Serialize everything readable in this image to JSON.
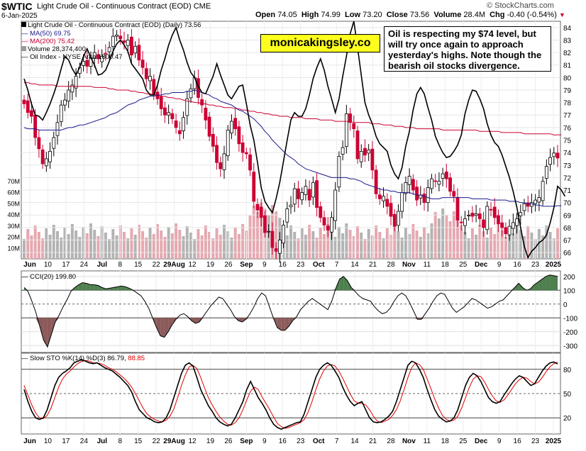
{
  "header": {
    "symbol": "$WTIC",
    "description": "Light Crude Oil - Continuous Contract (EOD)",
    "exchange": "CME",
    "date": "6-Jan-2025",
    "open_label": "Open",
    "open": "74.05",
    "high_label": "High",
    "high": "74.99",
    "low_label": "Low",
    "low": "73.20",
    "close_label": "Close",
    "close": "73.56",
    "volume_label": "Volume",
    "volume": "28.4M",
    "chg_label": "Chg",
    "chg": "-0.40 (-0.54%)",
    "logo_text": "© StockCharts.com"
  },
  "watermark": "monicakingsley.co",
  "note": "Oil is respecting my $74 level, but will try once again to approach yesterday's highs. Note though the bearish oil stocks divergence.",
  "legend": {
    "price": "Light Crude Oil - Continuous Contract (EOD) (Daily) 73.56",
    "ma50": "MA(50) 69.75",
    "ma200": "MA(200) 75.42",
    "volume": "Volume 28,374,400",
    "oil_index": "Oil Index - NYSE Arca 1800.47",
    "cci": "CCI(20) 199.80",
    "sto": "Slow STO %K(14) %D(3) 86.79,",
    "sto_d": "88.85"
  },
  "colors": {
    "up": "#000000",
    "down": "#cc0033",
    "ma50": "#1a1a8c",
    "ma200": "#cc0033",
    "oil_index": "#000000",
    "volume_up": "#b3b3b3",
    "volume_down": "#e6a8b0",
    "cci_pos_fill": "#4e7f4e",
    "cci_neg_fill": "#8c5a5a",
    "sto_k": "#000000",
    "sto_d": "#e00000"
  },
  "chart_data": [
    {
      "type": "candlestick",
      "panel": "price",
      "x_labels": [
        "Jun",
        "10",
        "17",
        "24",
        "Jul",
        "8",
        "15",
        "22",
        "29Aug",
        "12",
        "19",
        "26",
        "Sep",
        "9",
        "16",
        "23",
        "Oct",
        "7",
        "14",
        "21",
        "28",
        "Nov",
        "11",
        "18",
        "25",
        "Dec",
        "9",
        "16",
        "23",
        "2025"
      ],
      "y_ticks": [
        66,
        67,
        68,
        69,
        70,
        71,
        72,
        73,
        74,
        75,
        76,
        77,
        78,
        79,
        80,
        81,
        82,
        83,
        84
      ],
      "ylim": [
        65.5,
        84.5
      ],
      "volume_ticks": [
        "10M",
        "20M",
        "30M",
        "40M",
        "50M",
        "60M",
        "70M"
      ],
      "close_series": [
        77.9,
        77.2,
        76.9,
        75.2,
        74.3,
        73.1,
        73.5,
        74.1,
        75.2,
        76.4,
        77.8,
        78.2,
        79.0,
        79.4,
        80.1,
        80.8,
        81.3,
        80.9,
        81.6,
        82.0,
        81.5,
        81.7,
        81.9,
        82.4,
        83.3,
        83.4,
        83.1,
        82.8,
        83.0,
        81.8,
        82.5,
        81.4,
        80.8,
        79.9,
        80.1,
        78.6,
        78.3,
        77.5,
        77.0,
        77.2,
        76.7,
        76.0,
        75.5,
        76.8,
        78.3,
        79.1,
        80.0,
        78.4,
        77.8,
        76.6,
        75.3,
        74.5,
        73.2,
        72.7,
        73.9,
        75.8,
        76.5,
        75.9,
        74.7,
        74.0,
        73.9,
        72.6,
        70.1,
        69.4,
        68.8,
        67.6,
        67.7,
        66.4,
        66.1,
        67.0,
        68.2,
        69.5,
        69.8,
        71.1,
        70.3,
        70.8,
        71.3,
        70.2,
        71.6,
        69.6,
        68.8,
        68.2,
        67.8,
        68.8,
        71.0,
        73.7,
        74.4,
        77.1,
        76.4,
        75.9,
        73.5,
        74.1,
        73.8,
        74.2,
        72.6,
        70.7,
        70.3,
        70.5,
        69.7,
        68.9,
        68.1,
        69.3,
        70.8,
        71.6,
        72.1,
        71.0,
        70.2,
        70.6,
        70.0,
        71.2,
        71.9,
        71.7,
        71.7,
        72.3,
        71.9,
        70.9,
        70.5,
        68.6,
        68.4,
        68.7,
        69.0,
        68.9,
        69.1,
        68.7,
        68.0,
        69.7,
        69.4,
        68.8,
        68.3,
        68.0,
        67.5,
        68.1,
        68.4,
        68.7,
        69.2,
        69.9,
        69.7,
        70.0,
        70.2,
        70.4,
        71.7,
        72.9,
        73.6,
        73.96,
        73.56
      ],
      "ma50": [
        76.0,
        75.9,
        75.9,
        75.9,
        75.8,
        75.8,
        75.8,
        75.8,
        75.8,
        75.8,
        75.8,
        75.9,
        76.0,
        76.0,
        76.1,
        76.2,
        76.2,
        76.3,
        76.4,
        76.5,
        76.6,
        76.7,
        76.8,
        77.0,
        77.1,
        77.2,
        77.4,
        77.6,
        77.8,
        77.9,
        78.0,
        78.2,
        78.3,
        78.4,
        78.5,
        78.5,
        78.6,
        78.6,
        78.7,
        78.7,
        78.8,
        78.8,
        78.8,
        78.8,
        78.9,
        78.9,
        79.0,
        78.9,
        78.8,
        78.7,
        78.6,
        78.4,
        78.3,
        78.1,
        78.0,
        77.9,
        77.8,
        77.6,
        77.4,
        77.3,
        77.1,
        76.9,
        76.7,
        76.4,
        76.1,
        75.7,
        75.4,
        75.0,
        74.7,
        74.4,
        74.1,
        73.8,
        73.6,
        73.4,
        73.1,
        72.9,
        72.7,
        72.6,
        72.5,
        72.4,
        72.3,
        72.2,
        72.1,
        72.0,
        72.0,
        72.0,
        72.0,
        72.0,
        71.9,
        71.9,
        71.8,
        71.7,
        71.5,
        71.4,
        71.3,
        71.2,
        71.1,
        71.0,
        71.0,
        70.9,
        70.9,
        70.8,
        70.8,
        70.8,
        70.8,
        70.7,
        70.6,
        70.6,
        70.5,
        70.4,
        70.3,
        70.3,
        70.3,
        70.4,
        70.4,
        70.4,
        70.4,
        70.4,
        70.4,
        70.4,
        70.4,
        70.3,
        70.3,
        70.3,
        70.3,
        70.3,
        70.2,
        70.2,
        70.2,
        70.2,
        70.2,
        70.1,
        70.1,
        70.1,
        70.0,
        70.0,
        69.9,
        69.9,
        69.8,
        69.8,
        69.7,
        69.7,
        69.7,
        69.7,
        69.75,
        69.75
      ],
      "ma200": [
        79.6,
        79.6,
        79.5,
        79.5,
        79.4,
        79.4,
        79.4,
        79.4,
        79.4,
        79.3,
        79.3,
        79.3,
        79.3,
        79.3,
        79.3,
        79.3,
        79.3,
        79.3,
        79.3,
        79.2,
        79.2,
        79.2,
        79.2,
        79.1,
        79.1,
        79.0,
        79.0,
        79.0,
        79.0,
        78.9,
        78.9,
        78.8,
        78.8,
        78.7,
        78.7,
        78.6,
        78.6,
        78.5,
        78.5,
        78.4,
        78.4,
        78.3,
        78.3,
        78.2,
        78.1,
        78.1,
        78.0,
        78.0,
        77.9,
        77.9,
        77.8,
        77.8,
        77.7,
        77.7,
        77.6,
        77.6,
        77.6,
        77.5,
        77.5,
        77.4,
        77.4,
        77.3,
        77.3,
        77.2,
        77.2,
        77.1,
        77.1,
        77.0,
        77.0,
        76.9,
        76.9,
        76.9,
        76.8,
        76.8,
        76.8,
        76.8,
        76.7,
        76.7,
        76.7,
        76.7,
        76.6,
        76.6,
        76.6,
        76.6,
        76.5,
        76.5,
        76.5,
        76.5,
        76.5,
        76.4,
        76.4,
        76.4,
        76.4,
        76.4,
        76.3,
        76.3,
        76.3,
        76.2,
        76.2,
        76.2,
        76.1,
        76.1,
        76.1,
        76.0,
        76.0,
        76.0,
        75.9,
        75.9,
        75.9,
        75.9,
        75.9,
        75.9,
        75.9,
        75.8,
        75.8,
        75.8,
        75.8,
        75.8,
        75.8,
        75.8,
        75.8,
        75.8,
        75.8,
        75.7,
        75.7,
        75.7,
        75.7,
        75.7,
        75.7,
        75.6,
        75.6,
        75.6,
        75.6,
        75.6,
        75.6,
        75.5,
        75.5,
        75.5,
        75.5,
        75.5,
        75.5,
        75.5,
        75.5,
        75.4,
        75.42,
        75.42
      ],
      "oil_index_on_price_scale": [
        79.9,
        79.0,
        77.9,
        77.0,
        76.9,
        76.6,
        77.2,
        77.9,
        78.7,
        79.6,
        80.7,
        81.7,
        81.4,
        80.7,
        80.2,
        80.8,
        81.7,
        82.3,
        81.6,
        81.0,
        80.2,
        80.3,
        80.6,
        81.3,
        82.1,
        82.7,
        83.0,
        82.6,
        82.1,
        81.1,
        80.7,
        80.3,
        79.9,
        79.0,
        78.6,
        78.6,
        79.4,
        80.6,
        81.5,
        82.6,
        83.4,
        84.0,
        83.0,
        82.2,
        81.2,
        80.4,
        80.0,
        79.3,
        78.8,
        78.7,
        79.4,
        80.1,
        81.1,
        80.2,
        79.4,
        78.6,
        78.3,
        78.8,
        79.3,
        79.4,
        77.9,
        76.2,
        75.0,
        73.2,
        71.2,
        70.1,
        69.6,
        69.2,
        70.3,
        71.6,
        73.3,
        75.0,
        76.6,
        77.2,
        76.9,
        76.9,
        77.5,
        78.6,
        79.9,
        80.8,
        81.5,
        80.6,
        79.3,
        78.3,
        77.2,
        78.3,
        80.1,
        81.7,
        83.5,
        84.5,
        82.4,
        80.2,
        78.0,
        77.0,
        76.3,
        75.3,
        74.7,
        74.4,
        74.1,
        73.0,
        72.3,
        71.9,
        72.8,
        74.5,
        75.7,
        77.4,
        78.7,
        79.2,
        78.7,
        77.6,
        76.6,
        75.3,
        74.6,
        74.0,
        73.6,
        73.7,
        74.1,
        74.6,
        75.4,
        77.1,
        78.2,
        79.0,
        78.9,
        78.3,
        77.5,
        76.3,
        75.4,
        74.8,
        74.5,
        73.8,
        72.9,
        72.0,
        70.9,
        69.6,
        68.0,
        66.5,
        65.6,
        66.1,
        66.4,
        66.8,
        67.0,
        67.4,
        68.4,
        69.6,
        71.3,
        71.0,
        70.5
      ]
    },
    {
      "type": "line",
      "panel": "cci",
      "name": "CCI(20)",
      "y_ticks": [
        -300,
        -200,
        -100,
        0,
        100,
        200
      ],
      "ylim": [
        -350,
        240
      ],
      "bands": [
        100,
        -100
      ],
      "values": [
        120,
        90,
        20,
        -60,
        -160,
        -260,
        -310,
        -220,
        -130,
        -80,
        -20,
        30,
        90,
        120,
        140,
        155,
        150,
        140,
        140,
        135,
        120,
        110,
        115,
        120,
        125,
        130,
        125,
        115,
        100,
        80,
        60,
        20,
        -30,
        -100,
        -170,
        -230,
        -240,
        -200,
        -150,
        -110,
        -80,
        -70,
        -90,
        -120,
        -140,
        -130,
        -90,
        -50,
        -10,
        20,
        50,
        40,
        0,
        -40,
        -90,
        -120,
        -130,
        -110,
        -70,
        -20,
        40,
        80,
        60,
        -20,
        -100,
        -170,
        -190,
        -190,
        -160,
        -120,
        -90,
        -40,
        -10,
        20,
        40,
        20,
        0,
        -20,
        -40,
        20,
        110,
        180,
        200,
        170,
        120,
        90,
        60,
        40,
        30,
        20,
        -20,
        -50,
        -70,
        -60,
        -30,
        20,
        60,
        80,
        60,
        10,
        -50,
        -110,
        -110,
        -70,
        -30,
        20,
        60,
        80,
        70,
        20,
        -30,
        -60,
        -40,
        -20,
        10,
        40,
        30,
        10,
        -10,
        -30,
        -20,
        0,
        20,
        30,
        60,
        90,
        120,
        150,
        120,
        100,
        110,
        140,
        160,
        180,
        200,
        210,
        205,
        199.8
      ]
    },
    {
      "type": "line",
      "panel": "sto",
      "name": "Slow STO",
      "y_ticks": [
        20,
        50,
        80
      ],
      "ylim": [
        0,
        100
      ],
      "bands": [
        80,
        20
      ],
      "k": [
        55,
        40,
        28,
        20,
        18,
        20,
        30,
        45,
        60,
        70,
        75,
        78,
        82,
        88,
        90,
        92,
        90,
        88,
        87,
        88,
        85,
        82,
        80,
        78,
        74,
        70,
        65,
        60,
        52,
        40,
        30,
        25,
        20,
        18,
        15,
        14,
        15,
        20,
        30,
        45,
        60,
        75,
        85,
        88,
        84,
        70,
        55,
        45,
        35,
        28,
        20,
        15,
        12,
        10,
        12,
        20,
        30,
        40,
        55,
        65,
        55,
        45,
        38,
        30,
        20,
        12,
        8,
        6,
        8,
        10,
        12,
        14,
        15,
        25,
        40,
        55,
        70,
        80,
        85,
        88,
        85,
        78,
        70,
        58,
        48,
        40,
        35,
        38,
        40,
        30,
        20,
        15,
        14,
        15,
        18,
        22,
        28,
        40,
        55,
        70,
        85,
        90,
        88,
        80,
        70,
        55,
        42,
        30,
        22,
        18,
        15,
        16,
        20,
        30,
        45,
        60,
        70,
        75,
        72,
        65,
        55,
        45,
        40,
        38,
        40,
        48,
        55,
        62,
        68,
        72,
        70,
        65,
        60,
        62,
        70,
        78,
        84,
        88,
        89,
        86.79
      ],
      "d": [
        60,
        48,
        36,
        26,
        20,
        19,
        23,
        32,
        45,
        58,
        68,
        74,
        78,
        83,
        87,
        90,
        91,
        90,
        88,
        88,
        87,
        85,
        82,
        80,
        77,
        73,
        69,
        64,
        58,
        50,
        41,
        32,
        25,
        21,
        18,
        16,
        15,
        17,
        22,
        31,
        45,
        60,
        73,
        83,
        85,
        81,
        70,
        57,
        45,
        36,
        28,
        21,
        16,
        12,
        11,
        14,
        20,
        30,
        42,
        53,
        58,
        55,
        46,
        38,
        30,
        21,
        13,
        9,
        7,
        8,
        10,
        12,
        14,
        18,
        27,
        40,
        55,
        68,
        78,
        84,
        86,
        84,
        78,
        69,
        59,
        49,
        41,
        38,
        38,
        36,
        30,
        22,
        16,
        14,
        16,
        18,
        23,
        30,
        41,
        55,
        70,
        82,
        88,
        86,
        80,
        68,
        56,
        43,
        32,
        23,
        18,
        16,
        17,
        22,
        32,
        45,
        58,
        68,
        72,
        71,
        64,
        55,
        47,
        41,
        39,
        42,
        48,
        55,
        62,
        67,
        70,
        69,
        65,
        62,
        64,
        70,
        77,
        83,
        87,
        88.85
      ]
    }
  ]
}
